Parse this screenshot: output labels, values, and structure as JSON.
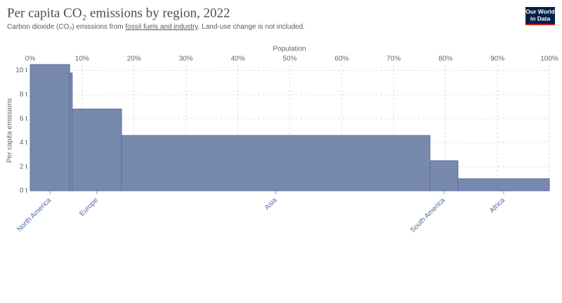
{
  "chart_data": {
    "type": "variwide",
    "title": "Per capita CO₂ emissions by region, 2022",
    "subtitle": [
      "Carbon dioxide (CO₂) emissions from ",
      "fossil fuels and industry",
      ". Land-use change is not included."
    ],
    "logo": [
      "Our World",
      "in Data"
    ],
    "x_label": "Population",
    "y_label": "Per capita emissions",
    "categories": [
      "North America",
      null,
      "Europe",
      "Asia",
      "South America",
      "Africa"
    ],
    "widths": [
      7.6,
      0.5,
      9.5,
      59.4,
      5.4,
      17.6
    ],
    "values": [
      10.5,
      9.8,
      6.8,
      4.6,
      2.5,
      1.0
    ],
    "color": "#7889ae",
    "xlim": [
      0,
      100
    ],
    "xticks": [
      {
        "value": 0,
        "label": "0%"
      },
      {
        "value": 10,
        "label": "10%"
      },
      {
        "value": 20,
        "label": "20%"
      },
      {
        "value": 30,
        "label": "30%"
      },
      {
        "value": 40,
        "label": "40%"
      },
      {
        "value": 50,
        "label": "50%"
      },
      {
        "value": 60,
        "label": "60%"
      },
      {
        "value": 70,
        "label": "70%"
      },
      {
        "value": 80,
        "label": "80%"
      },
      {
        "value": 90,
        "label": "90%"
      },
      {
        "value": 100,
        "label": "100%"
      }
    ],
    "ylim": [
      0,
      10.5
    ],
    "yticks": [
      {
        "value": 0,
        "label": "0 t"
      },
      {
        "value": 2,
        "label": "2 t"
      },
      {
        "value": 4,
        "label": "4 t"
      },
      {
        "value": 6,
        "label": "6 t"
      },
      {
        "value": 8,
        "label": "8 t"
      },
      {
        "value": 10,
        "label": "10 t"
      }
    ],
    "grid": true
  }
}
